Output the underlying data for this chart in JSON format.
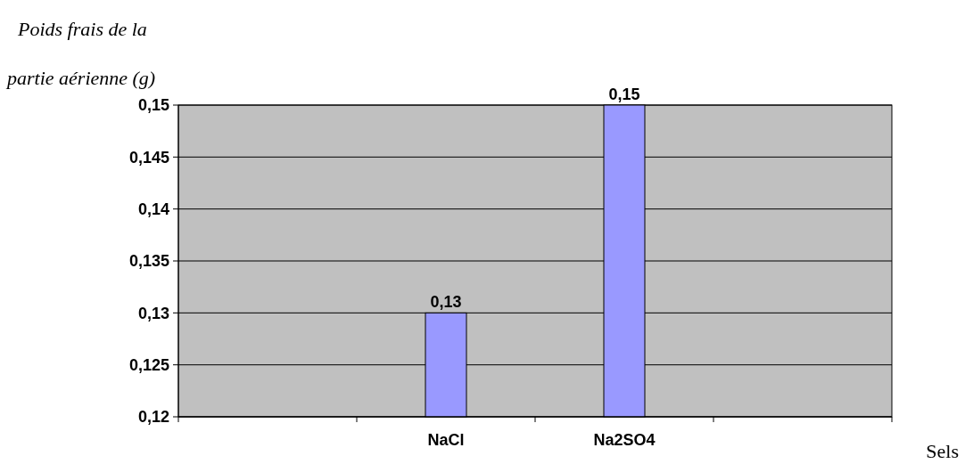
{
  "chart_data": {
    "type": "bar",
    "ylabel": "Poids frais de la partie aérienne (g)",
    "xlabel": "Sels",
    "categories": [
      null,
      "NaCl",
      "Na2SO4",
      null
    ],
    "values": [
      null,
      0.13,
      0.15,
      null
    ],
    "value_labels": [
      null,
      "0,13",
      "0,15",
      null
    ],
    "color": "#9999ff",
    "ylim": [
      0.12,
      0.15
    ],
    "yticks": [
      {
        "value": 0.12,
        "label": "0,12"
      },
      {
        "value": 0.125,
        "label": "0,125"
      },
      {
        "value": 0.13,
        "label": "0,13"
      },
      {
        "value": 0.135,
        "label": "0,135"
      },
      {
        "value": 0.14,
        "label": "0,14"
      },
      {
        "value": 0.145,
        "label": "0,145"
      },
      {
        "value": 0.15,
        "label": "0,15"
      }
    ],
    "grid": "y"
  }
}
